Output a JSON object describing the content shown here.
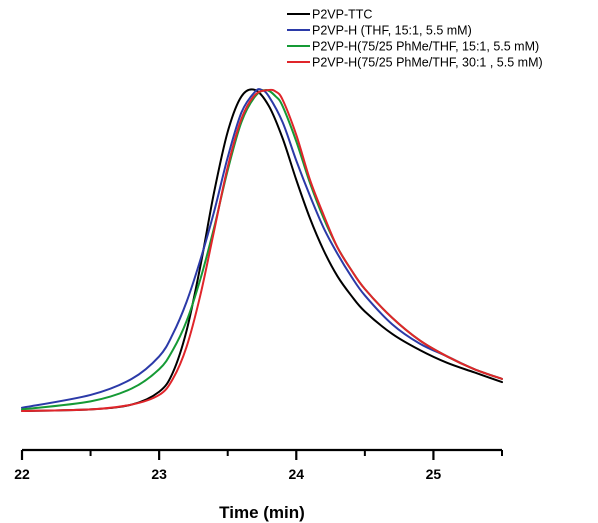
{
  "chart_data": {
    "type": "line",
    "title": "",
    "xlabel": "Time (min)",
    "ylabel": "",
    "xlim": [
      22,
      25.5
    ],
    "ylim": [
      0,
      1
    ],
    "xticks": [
      22,
      23,
      24,
      25
    ],
    "xticks_minor": [
      22.5,
      23.5,
      24.5,
      25.5
    ],
    "grid": false,
    "y_axis_shown": false,
    "legend_position": "top-right",
    "series": [
      {
        "name": "P2VP-TTC",
        "color": "#000000",
        "x": [
          22.0,
          22.5,
          22.8,
          23.0,
          23.1,
          23.2,
          23.3,
          23.4,
          23.5,
          23.6,
          23.7,
          23.8,
          23.9,
          24.0,
          24.1,
          24.2,
          24.3,
          24.4,
          24.5,
          24.7,
          24.9,
          25.1,
          25.3,
          25.5
        ],
        "y": [
          0.0,
          0.005,
          0.02,
          0.06,
          0.12,
          0.25,
          0.45,
          0.68,
          0.87,
          0.98,
          1.0,
          0.95,
          0.85,
          0.72,
          0.6,
          0.5,
          0.42,
          0.36,
          0.31,
          0.24,
          0.19,
          0.15,
          0.12,
          0.09
        ]
      },
      {
        "name": "P2VP-H (THF, 15:1, 5.5 mM)",
        "color": "#2b3aa8",
        "x": [
          22.0,
          22.5,
          22.8,
          23.0,
          23.1,
          23.2,
          23.3,
          23.4,
          23.5,
          23.6,
          23.7,
          23.75,
          23.8,
          23.9,
          24.0,
          24.1,
          24.2,
          24.3,
          24.4,
          24.5,
          24.7,
          24.9,
          25.1,
          25.3,
          25.5
        ],
        "y": [
          0.01,
          0.05,
          0.1,
          0.17,
          0.24,
          0.34,
          0.47,
          0.62,
          0.79,
          0.93,
          0.995,
          1.0,
          0.98,
          0.9,
          0.78,
          0.67,
          0.57,
          0.49,
          0.42,
          0.36,
          0.27,
          0.21,
          0.17,
          0.13,
          0.1
        ]
      },
      {
        "name": "P2VP-H(75/25 PhMe/THF, 15:1, 5.5 mM)",
        "color": "#159a35",
        "x": [
          22.0,
          22.5,
          22.8,
          23.0,
          23.1,
          23.2,
          23.3,
          23.4,
          23.5,
          23.6,
          23.7,
          23.78,
          23.85,
          23.9,
          24.0,
          24.1,
          24.2,
          24.3,
          24.4,
          24.5,
          24.7,
          24.9,
          25.1,
          25.3,
          25.5
        ],
        "y": [
          0.005,
          0.03,
          0.07,
          0.13,
          0.19,
          0.28,
          0.41,
          0.57,
          0.75,
          0.9,
          0.98,
          1.0,
          0.98,
          0.95,
          0.84,
          0.71,
          0.6,
          0.51,
          0.44,
          0.38,
          0.29,
          0.22,
          0.17,
          0.13,
          0.1
        ]
      },
      {
        "name": "P2VP-H(75/25 PhMe/THF, 30:1 , 5.5 mM)",
        "color": "#e0252a",
        "x": [
          22.0,
          22.5,
          22.8,
          23.0,
          23.1,
          23.2,
          23.3,
          23.4,
          23.5,
          23.6,
          23.7,
          23.8,
          23.85,
          23.9,
          24.0,
          24.1,
          24.2,
          24.3,
          24.4,
          24.5,
          24.7,
          24.9,
          25.1,
          25.3,
          25.5
        ],
        "y": [
          0.0,
          0.005,
          0.02,
          0.05,
          0.1,
          0.2,
          0.36,
          0.56,
          0.76,
          0.91,
          0.985,
          1.0,
          0.995,
          0.97,
          0.86,
          0.72,
          0.61,
          0.51,
          0.44,
          0.38,
          0.29,
          0.22,
          0.17,
          0.13,
          0.1
        ]
      }
    ]
  }
}
